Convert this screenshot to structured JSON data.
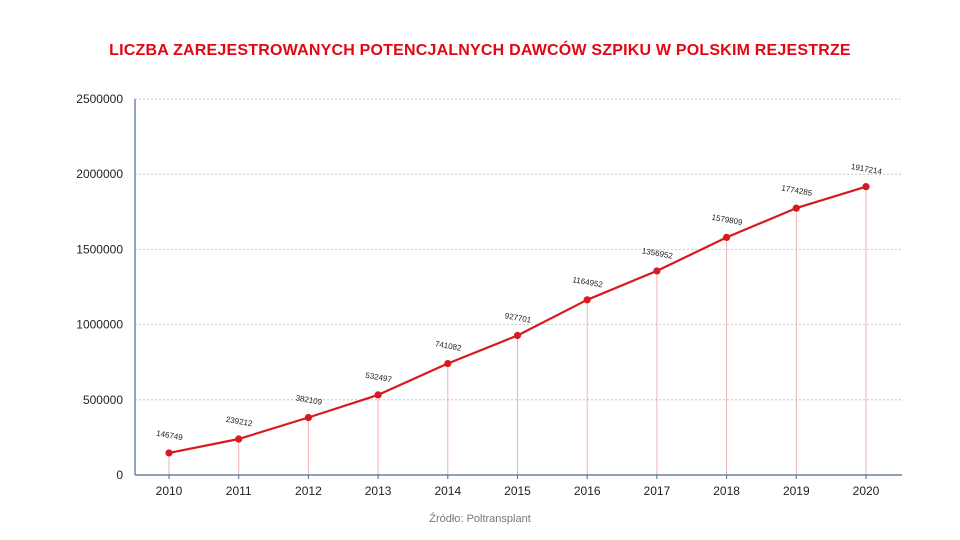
{
  "colors": {
    "title": "#e30613",
    "series": "#d71920",
    "axis": "#4a6a8a",
    "grid": "#bbbbbb",
    "drop_line": "#f0b3b3"
  },
  "source_note": "Źródło: Poltransplant",
  "chart_data": {
    "type": "line",
    "title": "LICZBA ZAREJESTROWANYCH POTENCJALNYCH DAWCÓW SZPIKU W POLSKIM REJESTRZE",
    "xlabel": "",
    "ylabel": "",
    "x": [
      "2010",
      "2011",
      "2012",
      "2013",
      "2014",
      "2015",
      "2016",
      "2017",
      "2018",
      "2019",
      "2020"
    ],
    "values": [
      146749,
      239212,
      382109,
      532497,
      741082,
      927701,
      1164952,
      1356952,
      1579809,
      1774285,
      1917214
    ],
    "data_labels": [
      "146749",
      "239212",
      "382109",
      "532497",
      "741082",
      "927701",
      "1164952",
      "1356952",
      "1579809",
      "1774285",
      "1917214"
    ],
    "ylim": [
      0,
      2500000
    ],
    "yticks": [
      0,
      500000,
      1000000,
      1500000,
      2000000,
      2500000
    ],
    "ytick_labels": [
      "0",
      "500000",
      "1000000",
      "1500000",
      "2000000",
      "2500000"
    ],
    "grid": true,
    "legend": "none"
  }
}
